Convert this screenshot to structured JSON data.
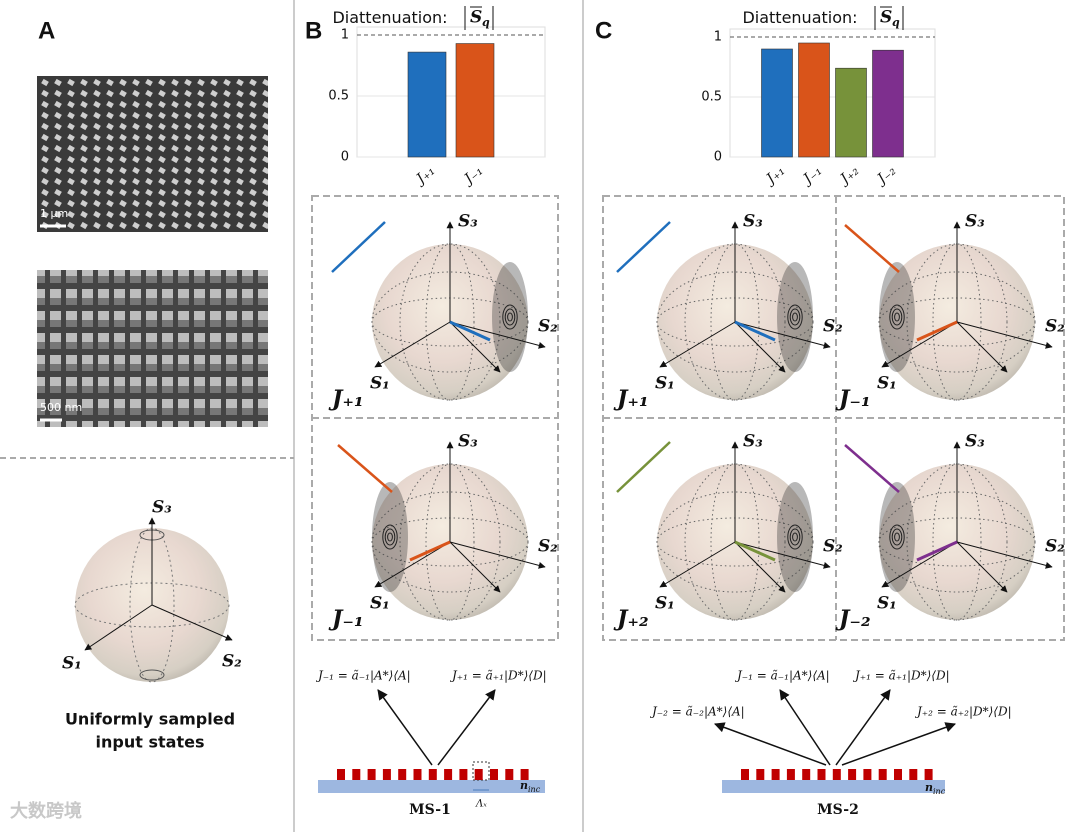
{
  "panel_labels": [
    "A",
    "B",
    "C"
  ],
  "panel_a": {
    "scale_bars": [
      "1 μm",
      "500 nm"
    ],
    "sphere_axes": [
      "S₃",
      "S₁",
      "S₂"
    ],
    "caption": [
      "Uniformly sampled",
      "input states"
    ]
  },
  "chart_data": [
    {
      "type": "bar",
      "title": "Diattenuation:",
      "title_symbol": "S",
      "title_subscript": "q",
      "categories": [
        "J₊₁",
        "J₋₁"
      ],
      "values": [
        0.86,
        0.93
      ],
      "colors": [
        "#1f6fbd",
        "#d9541a"
      ],
      "ylim": [
        0,
        1
      ],
      "yticks": [
        0,
        0.5,
        1
      ]
    },
    {
      "type": "bar",
      "title": "Diattenuation:",
      "title_symbol": "S",
      "title_subscript": "q",
      "categories": [
        "J₊₁",
        "J₋₁",
        "J₊₂",
        "J₋₂"
      ],
      "values": [
        0.9,
        0.95,
        0.74,
        0.89
      ],
      "colors": [
        "#1f6fbd",
        "#d9541a",
        "#77923a",
        "#7e2f8e"
      ],
      "ylim": [
        0,
        1
      ],
      "yticks": [
        0,
        0.5,
        1
      ]
    }
  ],
  "panel_b": {
    "spheres": [
      {
        "label": "J₊₁",
        "axes": [
          "S₃",
          "S₂",
          "S₁"
        ]
      },
      {
        "label": "J₋₁",
        "axes": [
          "S₃",
          "S₂",
          "S₁"
        ]
      }
    ],
    "equations": [
      "J₋₁ = ã₋₁|A*⟩⟨A|",
      "J₊₁ = ã₊₁|D*⟩⟨D|"
    ],
    "device": {
      "name": "MS-1",
      "index": "n",
      "index_subscript": "inc",
      "period": "Λₓ"
    }
  },
  "panel_c": {
    "spheres": [
      {
        "label": "J₊₁",
        "axes": [
          "S₃",
          "S₂",
          "S₁"
        ]
      },
      {
        "label": "J₋₁",
        "axes": [
          "S₃",
          "S₂",
          "S₁"
        ]
      },
      {
        "label": "J₊₂",
        "axes": [
          "S₃",
          "S₂",
          "S₁"
        ]
      },
      {
        "label": "J₋₂",
        "axes": [
          "S₃",
          "S₂",
          "S₁"
        ]
      }
    ],
    "equations": [
      "J₋₁ = ã₋₁|A*⟩⟨A|",
      "J₊₁ = ã₊₁|D*⟩⟨D|",
      "J₋₂ = ã₋₂|A*⟩⟨A|",
      "J₊₂ = ã₊₂|D*⟩⟨D|"
    ],
    "device": {
      "name": "MS-2",
      "index": "n",
      "index_subscript": "inc"
    }
  },
  "watermark": "大数跨境"
}
